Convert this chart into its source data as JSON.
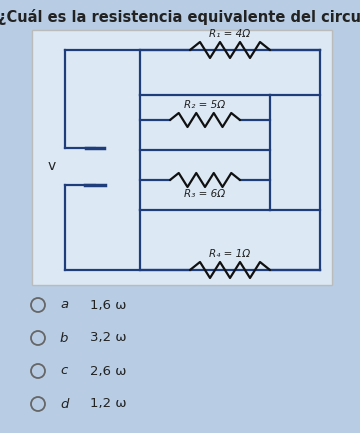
{
  "title": "¿Cuál es la resistencia equivalente del circuito?",
  "title_fontsize": 10.5,
  "bg_color": "#b8cce4",
  "circuit_box_color": "#dce9f5",
  "circuit_border_color": "#aaaaaa",
  "inner_box_color": "#1f3d7a",
  "r1_label": "R₁ = 4Ω",
  "r2_label": "R₂ = 5Ω",
  "r3_label": "R₃ = 6Ω",
  "r4_label": "R₄ = 1Ω",
  "choice_letters": [
    "a",
    "b",
    "c",
    "d"
  ],
  "choice_values": [
    "1,6 ω",
    "3,2 ω",
    "2,6 ω",
    "1,2 ω"
  ],
  "text_color": "#222222",
  "wire_color": "#1f3d7a",
  "resistor_color": "#111111",
  "v_label": "v"
}
